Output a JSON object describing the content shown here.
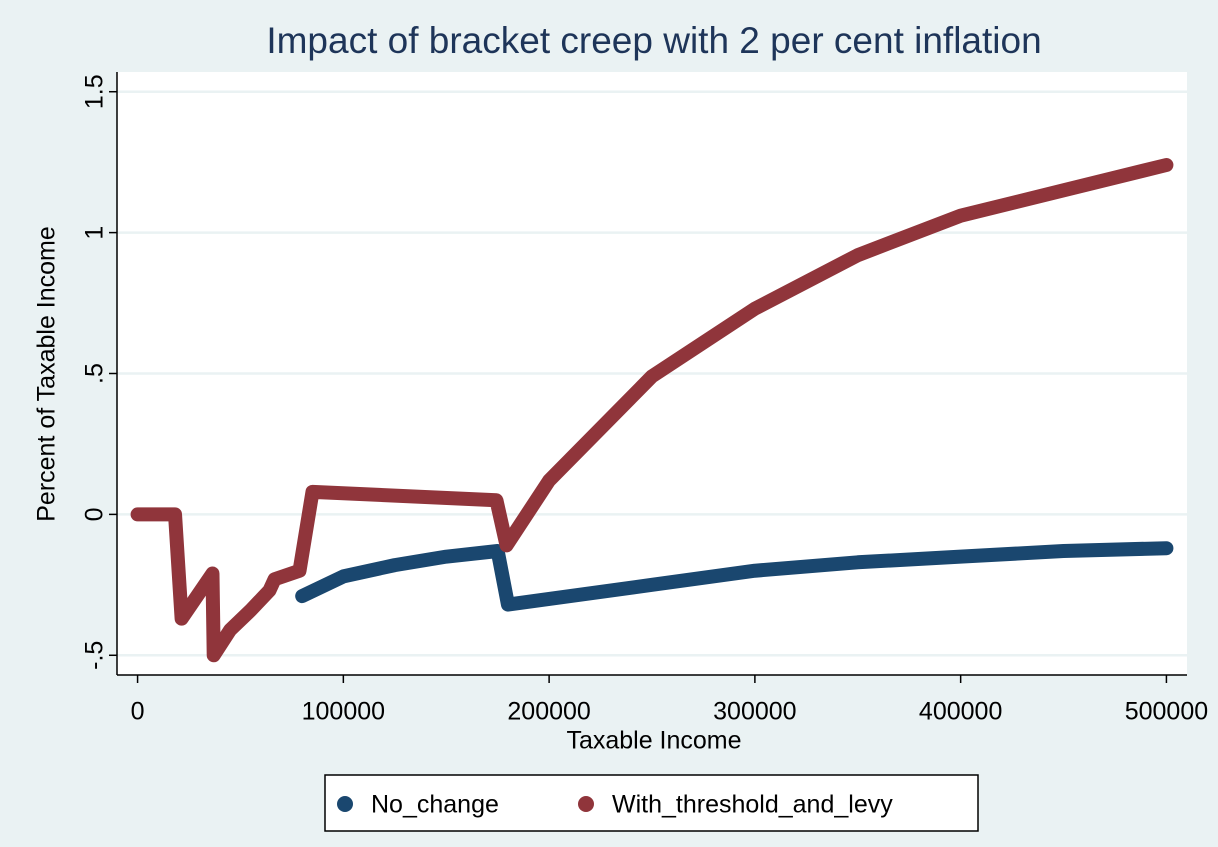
{
  "chart_data": {
    "type": "line",
    "title": "Impact of bracket creep with 2 per cent inflation",
    "x_label": "Taxable Income",
    "y_label": "Percent of Taxable Income",
    "xlim": [
      -10000,
      510000
    ],
    "ylim": [
      -0.57,
      1.57
    ],
    "xticks": [
      0,
      100000,
      200000,
      300000,
      400000,
      500000
    ],
    "yticks": [
      {
        "value": -0.5,
        "label": "-.5"
      },
      0,
      {
        "value": 0.5,
        "label": ".5"
      },
      1,
      1.5
    ],
    "grid": true,
    "legend": "bottom",
    "series": [
      {
        "name": "No_change",
        "color": "#1a476f",
        "x": [
          80000,
          100000,
          125000,
          150000,
          175000,
          180000,
          200000,
          250000,
          300000,
          350000,
          400000,
          450000,
          500000
        ],
        "values": [
          -0.29,
          -0.22,
          -0.18,
          -0.15,
          -0.13,
          -0.32,
          -0.3,
          -0.25,
          -0.2,
          -0.17,
          -0.15,
          -0.13,
          -0.12
        ]
      },
      {
        "name": "With_threshold_and_levy",
        "color": "#90353b",
        "x": [
          0,
          18200,
          21400,
          36400,
          37000,
          45000,
          55000,
          64100,
          66600,
          78700,
          85000,
          174400,
          179300,
          200000,
          250000,
          300000,
          350000,
          400000,
          450000,
          500000
        ],
        "values": [
          0,
          0,
          -0.37,
          -0.21,
          -0.5,
          -0.41,
          -0.34,
          -0.27,
          -0.23,
          -0.2,
          0.08,
          0.05,
          -0.11,
          0.12,
          0.49,
          0.73,
          0.92,
          1.06,
          1.15,
          1.24
        ]
      }
    ]
  }
}
